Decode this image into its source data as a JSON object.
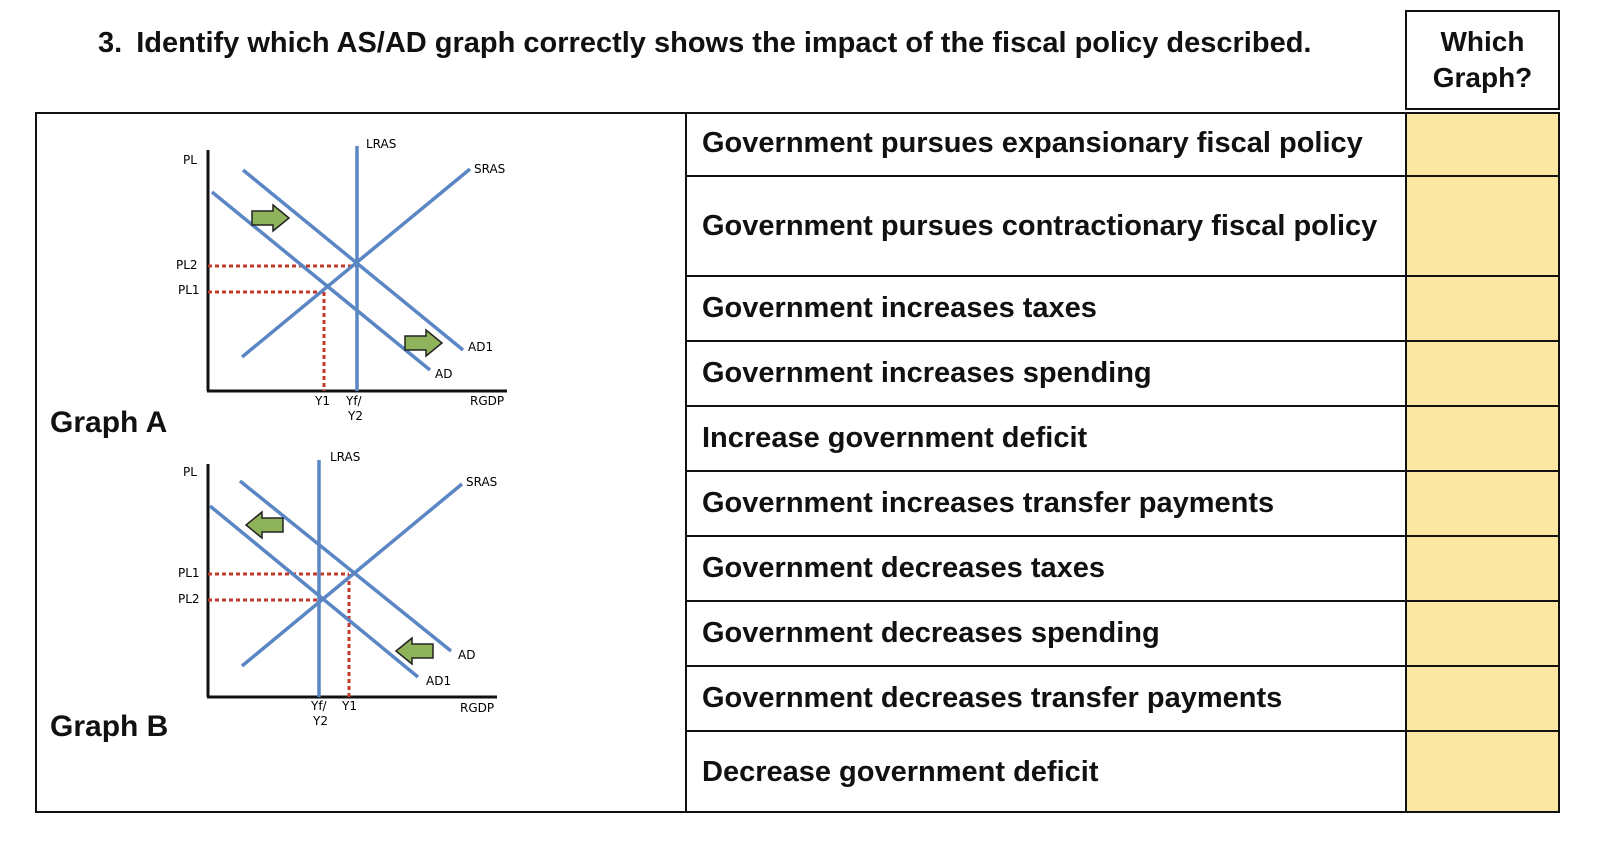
{
  "question": {
    "number": "3.",
    "text": "Identify which AS/AD graph correctly shows the impact of the fiscal policy described."
  },
  "answer_column_header": "Which Graph?",
  "graphs": {
    "graph_a": {
      "label": "Graph A",
      "y_axis": "PL",
      "x_axis": "RGDP",
      "lras": "LRAS",
      "sras": "SRAS",
      "ad_original": "AD",
      "ad_new": "AD1",
      "pl_upper": "PL2",
      "pl_lower": "PL1",
      "y_left": "Y1",
      "y_right_top": "Yf/",
      "y_right_bottom": "Y2",
      "arrow_direction": "right"
    },
    "graph_b": {
      "label": "Graph B",
      "y_axis": "PL",
      "x_axis": "RGDP",
      "lras": "LRAS",
      "sras": "SRAS",
      "ad_original": "AD",
      "ad_new": "AD1",
      "pl_upper": "PL1",
      "pl_lower": "PL2",
      "y_left_top": "Yf/",
      "y_left_bottom": "Y2",
      "y_right": "Y1",
      "arrow_direction": "left"
    }
  },
  "statements": [
    "Government pursues expansionary fiscal policy",
    "Government pursues contractionary fiscal policy",
    "Government increases taxes",
    "Government increases spending",
    "Increase government deficit",
    "Government increases transfer payments",
    "Government decreases taxes",
    "Government decreases spending",
    "Government decreases transfer payments",
    "Decrease government deficit"
  ],
  "answers": [
    "",
    "",
    "",
    "",
    "",
    "",
    "",
    "",
    "",
    ""
  ],
  "colors": {
    "curve_blue": "#5b86c4",
    "dotted_red": "#c0392b",
    "arrow_green": "#8fb35a",
    "answer_fill": "#fbe6a2"
  }
}
